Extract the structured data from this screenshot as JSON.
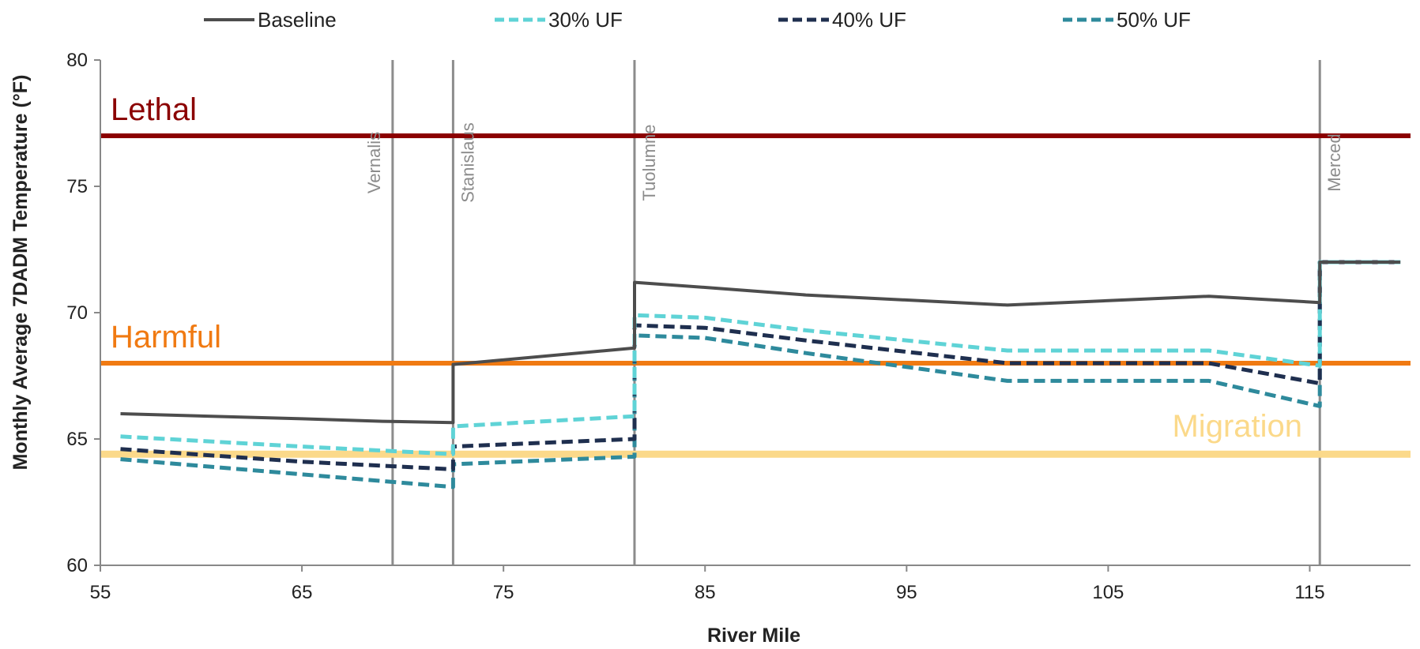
{
  "chart_data": {
    "type": "line",
    "xlabel": "River Mile",
    "ylabel": "Monthly Average 7DADM Temperature (°F)",
    "xlim": [
      55,
      120
    ],
    "ylim": [
      60,
      80
    ],
    "x_ticks": [
      55,
      65,
      75,
      85,
      95,
      105,
      115
    ],
    "y_ticks": [
      60,
      65,
      70,
      75,
      80
    ],
    "legend_position": "top",
    "colors": {
      "baseline": "#4d4d4d",
      "uf30": "#5fd3d6",
      "uf40": "#1f2f4f",
      "uf50": "#2e8a9c",
      "lethal": "#8b0000",
      "harmful": "#f07a12",
      "migration": "#fbd98a",
      "tributary": "#8c8c8c"
    },
    "series": [
      {
        "name": "Baseline",
        "key": "baseline",
        "points": [
          [
            56,
            66.0
          ],
          [
            65,
            65.8
          ],
          [
            69,
            65.7
          ],
          [
            72.5,
            65.65
          ],
          [
            72.5,
            67.95
          ],
          [
            81.5,
            68.6
          ],
          [
            81.5,
            71.2
          ],
          [
            85,
            71.0
          ],
          [
            90,
            70.7
          ],
          [
            100,
            70.3
          ],
          [
            110,
            70.65
          ],
          [
            115.5,
            70.4
          ],
          [
            115.5,
            72.0
          ],
          [
            119.5,
            72.0
          ]
        ]
      },
      {
        "name": "30% UF",
        "key": "uf30",
        "points": [
          [
            56,
            65.1
          ],
          [
            65,
            64.7
          ],
          [
            72.5,
            64.4
          ],
          [
            72.5,
            65.5
          ],
          [
            81.5,
            65.9
          ],
          [
            81.5,
            69.9
          ],
          [
            85,
            69.8
          ],
          [
            90,
            69.3
          ],
          [
            100,
            68.5
          ],
          [
            110,
            68.5
          ],
          [
            115.5,
            67.9
          ],
          [
            115.5,
            72.0
          ],
          [
            119.5,
            72.0
          ]
        ]
      },
      {
        "name": "40% UF",
        "key": "uf40",
        "points": [
          [
            56,
            64.6
          ],
          [
            65,
            64.1
          ],
          [
            72.5,
            63.8
          ],
          [
            72.5,
            64.7
          ],
          [
            81.5,
            65.0
          ],
          [
            81.5,
            69.5
          ],
          [
            85,
            69.4
          ],
          [
            90,
            68.9
          ],
          [
            100,
            68.0
          ],
          [
            110,
            68.0
          ],
          [
            115.5,
            67.2
          ],
          [
            115.5,
            72.0
          ],
          [
            119.5,
            72.0
          ]
        ]
      },
      {
        "name": "50% UF",
        "key": "uf50",
        "points": [
          [
            56,
            64.2
          ],
          [
            65,
            63.6
          ],
          [
            72.5,
            63.1
          ],
          [
            72.5,
            64.0
          ],
          [
            81.5,
            64.3
          ],
          [
            81.5,
            69.1
          ],
          [
            85,
            69.0
          ],
          [
            90,
            68.4
          ],
          [
            100,
            67.3
          ],
          [
            110,
            67.3
          ],
          [
            115.5,
            66.3
          ],
          [
            115.5,
            72.0
          ],
          [
            119.5,
            72.0
          ]
        ]
      }
    ],
    "thresholds": [
      {
        "label": "Lethal",
        "key": "lethal",
        "y": 77
      },
      {
        "label": "Harmful",
        "key": "harmful",
        "y": 68
      },
      {
        "label": "Migration",
        "key": "migration",
        "y": 64.4
      }
    ],
    "tributaries": [
      {
        "label": "Vernalis",
        "x": 69.5
      },
      {
        "label": "Stanislaus",
        "x": 72.5
      },
      {
        "label": "Tuolumne",
        "x": 81.5
      },
      {
        "label": "Merced",
        "x": 115.5
      }
    ]
  }
}
